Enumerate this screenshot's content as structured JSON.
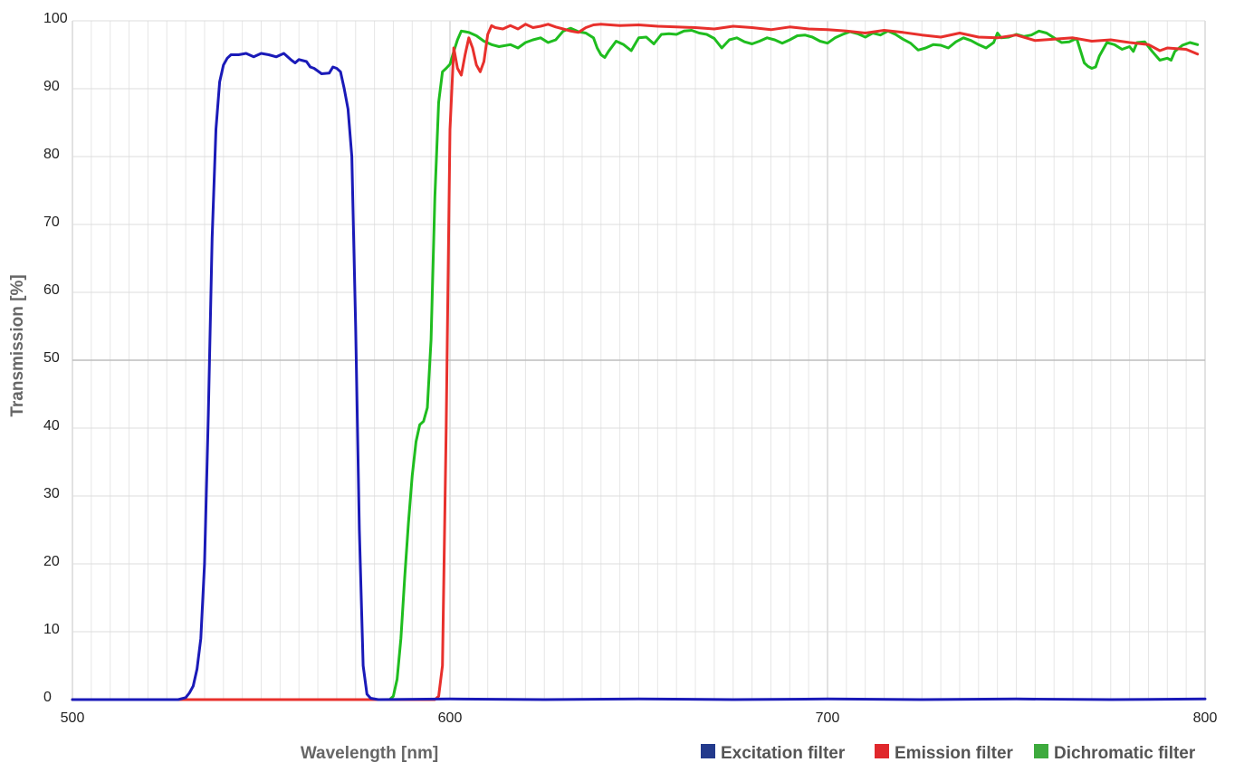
{
  "chart_data": {
    "type": "line",
    "title": "",
    "xlabel": "Wavelength [nm]",
    "ylabel": "Transmission [%]",
    "xlim": [
      500,
      800
    ],
    "ylim": [
      0,
      100
    ],
    "x_ticks": [
      500,
      600,
      700,
      800
    ],
    "x_tick_labels": [
      "500",
      "600",
      "700",
      "800"
    ],
    "y_ticks": [
      0,
      10,
      20,
      30,
      40,
      50,
      60,
      70,
      80,
      90,
      100
    ],
    "y_tick_labels": [
      "0",
      "10",
      "20",
      "30",
      "40",
      "50",
      "60",
      "70",
      "80",
      "90",
      "100"
    ],
    "grid": true,
    "legend_position": "bottom-right",
    "series": [
      {
        "name": "Excitation filter",
        "color": "#1a1ab8",
        "legend_color": "#233a8c",
        "points": [
          [
            500,
            0
          ],
          [
            528,
            0
          ],
          [
            530,
            0.3
          ],
          [
            531,
            1
          ],
          [
            532,
            2
          ],
          [
            533,
            4.5
          ],
          [
            534,
            9
          ],
          [
            535,
            20
          ],
          [
            536,
            42
          ],
          [
            537,
            68
          ],
          [
            538,
            84
          ],
          [
            539,
            91
          ],
          [
            540,
            93.5
          ],
          [
            541,
            94.5
          ],
          [
            542,
            95
          ],
          [
            544,
            95
          ],
          [
            546,
            95.2
          ],
          [
            548,
            94.7
          ],
          [
            550,
            95.2
          ],
          [
            552,
            95
          ],
          [
            554,
            94.7
          ],
          [
            556,
            95.2
          ],
          [
            558,
            94.2
          ],
          [
            559,
            93.8
          ],
          [
            560,
            94.3
          ],
          [
            562,
            94
          ],
          [
            563,
            93.2
          ],
          [
            564,
            93
          ],
          [
            565,
            92.6
          ],
          [
            566,
            92.2
          ],
          [
            568,
            92.3
          ],
          [
            569,
            93.2
          ],
          [
            570,
            93
          ],
          [
            571,
            92.5
          ],
          [
            572,
            90
          ],
          [
            573,
            87
          ],
          [
            574,
            80
          ],
          [
            575,
            55
          ],
          [
            576,
            25
          ],
          [
            577,
            5
          ],
          [
            578,
            0.8
          ],
          [
            579,
            0.2
          ],
          [
            581,
            0
          ],
          [
            600,
            0.1
          ],
          [
            625,
            0
          ],
          [
            650,
            0.1
          ],
          [
            675,
            0
          ],
          [
            700,
            0.1
          ],
          [
            725,
            0
          ],
          [
            750,
            0.1
          ],
          [
            775,
            0
          ],
          [
            800,
            0.1
          ]
        ]
      },
      {
        "name": "Emission filter",
        "color": "#e8302c",
        "legend_color": "#e0282c",
        "points": [
          [
            500,
            0
          ],
          [
            590,
            0
          ],
          [
            596,
            0
          ],
          [
            597,
            0.5
          ],
          [
            598,
            5
          ],
          [
            599,
            40
          ],
          [
            600,
            84
          ],
          [
            601,
            96
          ],
          [
            602,
            93
          ],
          [
            603,
            92
          ],
          [
            604,
            95
          ],
          [
            605,
            97.5
          ],
          [
            606,
            96
          ],
          [
            607,
            93.5
          ],
          [
            608,
            92.5
          ],
          [
            609,
            94
          ],
          [
            610,
            98
          ],
          [
            611,
            99.3
          ],
          [
            612,
            99
          ],
          [
            614,
            98.8
          ],
          [
            616,
            99.3
          ],
          [
            618,
            98.8
          ],
          [
            620,
            99.5
          ],
          [
            622,
            99
          ],
          [
            624,
            99.2
          ],
          [
            626,
            99.5
          ],
          [
            628,
            99.1
          ],
          [
            630,
            98.8
          ],
          [
            632,
            98.5
          ],
          [
            634,
            98.3
          ],
          [
            636,
            99
          ],
          [
            638,
            99.4
          ],
          [
            640,
            99.5
          ],
          [
            645,
            99.3
          ],
          [
            650,
            99.4
          ],
          [
            655,
            99.2
          ],
          [
            660,
            99.1
          ],
          [
            665,
            99
          ],
          [
            670,
            98.8
          ],
          [
            675,
            99.2
          ],
          [
            680,
            99
          ],
          [
            685,
            98.7
          ],
          [
            690,
            99.1
          ],
          [
            695,
            98.8
          ],
          [
            700,
            98.7
          ],
          [
            705,
            98.5
          ],
          [
            710,
            98.2
          ],
          [
            715,
            98.6
          ],
          [
            720,
            98.3
          ],
          [
            725,
            97.9
          ],
          [
            730,
            97.6
          ],
          [
            735,
            98.2
          ],
          [
            740,
            97.6
          ],
          [
            745,
            97.5
          ],
          [
            750,
            97.9
          ],
          [
            755,
            97.1
          ],
          [
            760,
            97.3
          ],
          [
            765,
            97.5
          ],
          [
            770,
            97
          ],
          [
            775,
            97.2
          ],
          [
            780,
            96.8
          ],
          [
            785,
            96.5
          ],
          [
            788,
            95.6
          ],
          [
            790,
            96
          ],
          [
            795,
            95.8
          ],
          [
            798,
            95.1
          ]
        ]
      },
      {
        "name": "Dichromatic filter",
        "color": "#1fbd1f",
        "legend_color": "#3daa3d",
        "points": [
          [
            500,
            0
          ],
          [
            584,
            0
          ],
          [
            585,
            0.5
          ],
          [
            586,
            3
          ],
          [
            587,
            9
          ],
          [
            588,
            18
          ],
          [
            589,
            26
          ],
          [
            590,
            33
          ],
          [
            591,
            38
          ],
          [
            592,
            40.5
          ],
          [
            593,
            41
          ],
          [
            594,
            43
          ],
          [
            595,
            53
          ],
          [
            596,
            74
          ],
          [
            597,
            88
          ],
          [
            598,
            92.5
          ],
          [
            599,
            93
          ],
          [
            600,
            93.6
          ],
          [
            601,
            95.5
          ],
          [
            602,
            97.2
          ],
          [
            603,
            98.5
          ],
          [
            604,
            98.4
          ],
          [
            605,
            98.3
          ],
          [
            607,
            97.8
          ],
          [
            609,
            97
          ],
          [
            611,
            96.5
          ],
          [
            613,
            96.2
          ],
          [
            616,
            96.5
          ],
          [
            618,
            96
          ],
          [
            620,
            96.8
          ],
          [
            622,
            97.2
          ],
          [
            624,
            97.5
          ],
          [
            626,
            96.8
          ],
          [
            628,
            97.2
          ],
          [
            630,
            98.5
          ],
          [
            632,
            98.9
          ],
          [
            634,
            98.4
          ],
          [
            636,
            98.2
          ],
          [
            638,
            97.5
          ],
          [
            639,
            96
          ],
          [
            640,
            95
          ],
          [
            641,
            94.6
          ],
          [
            642,
            95.5
          ],
          [
            644,
            97
          ],
          [
            646,
            96.5
          ],
          [
            648,
            95.6
          ],
          [
            650,
            97.5
          ],
          [
            652,
            97.6
          ],
          [
            654,
            96.6
          ],
          [
            656,
            98
          ],
          [
            658,
            98.1
          ],
          [
            660,
            98
          ],
          [
            662,
            98.5
          ],
          [
            664,
            98.6
          ],
          [
            666,
            98.2
          ],
          [
            668,
            98
          ],
          [
            670,
            97.4
          ],
          [
            672,
            96
          ],
          [
            674,
            97.2
          ],
          [
            676,
            97.5
          ],
          [
            678,
            96.9
          ],
          [
            680,
            96.6
          ],
          [
            682,
            97
          ],
          [
            684,
            97.5
          ],
          [
            686,
            97.2
          ],
          [
            688,
            96.7
          ],
          [
            690,
            97.2
          ],
          [
            692,
            97.8
          ],
          [
            694,
            97.9
          ],
          [
            696,
            97.6
          ],
          [
            698,
            97
          ],
          [
            700,
            96.7
          ],
          [
            702,
            97.5
          ],
          [
            704,
            98
          ],
          [
            706,
            98.4
          ],
          [
            708,
            98.1
          ],
          [
            710,
            97.6
          ],
          [
            712,
            98.2
          ],
          [
            714,
            97.9
          ],
          [
            716,
            98.5
          ],
          [
            718,
            98
          ],
          [
            720,
            97.3
          ],
          [
            722,
            96.7
          ],
          [
            724,
            95.7
          ],
          [
            726,
            96
          ],
          [
            728,
            96.5
          ],
          [
            730,
            96.4
          ],
          [
            732,
            96
          ],
          [
            734,
            96.9
          ],
          [
            736,
            97.5
          ],
          [
            738,
            97.1
          ],
          [
            740,
            96.5
          ],
          [
            742,
            96
          ],
          [
            744,
            96.8
          ],
          [
            745,
            98.2
          ],
          [
            746,
            97.5
          ],
          [
            748,
            97.6
          ],
          [
            750,
            98
          ],
          [
            752,
            97.7
          ],
          [
            754,
            97.9
          ],
          [
            756,
            98.5
          ],
          [
            758,
            98.2
          ],
          [
            760,
            97.5
          ],
          [
            762,
            96.8
          ],
          [
            764,
            96.9
          ],
          [
            766,
            97.4
          ],
          [
            767,
            95.6
          ],
          [
            768,
            93.8
          ],
          [
            769,
            93.3
          ],
          [
            770,
            93
          ],
          [
            771,
            93.2
          ],
          [
            772,
            94.8
          ],
          [
            774,
            96.8
          ],
          [
            776,
            96.5
          ],
          [
            778,
            95.8
          ],
          [
            780,
            96.2
          ],
          [
            781,
            95.5
          ],
          [
            782,
            96.8
          ],
          [
            784,
            96.9
          ],
          [
            786,
            95.5
          ],
          [
            788,
            94.2
          ],
          [
            790,
            94.5
          ],
          [
            791,
            94.2
          ],
          [
            792,
            95.5
          ],
          [
            794,
            96.4
          ],
          [
            796,
            96.8
          ],
          [
            798,
            96.5
          ]
        ]
      }
    ]
  }
}
